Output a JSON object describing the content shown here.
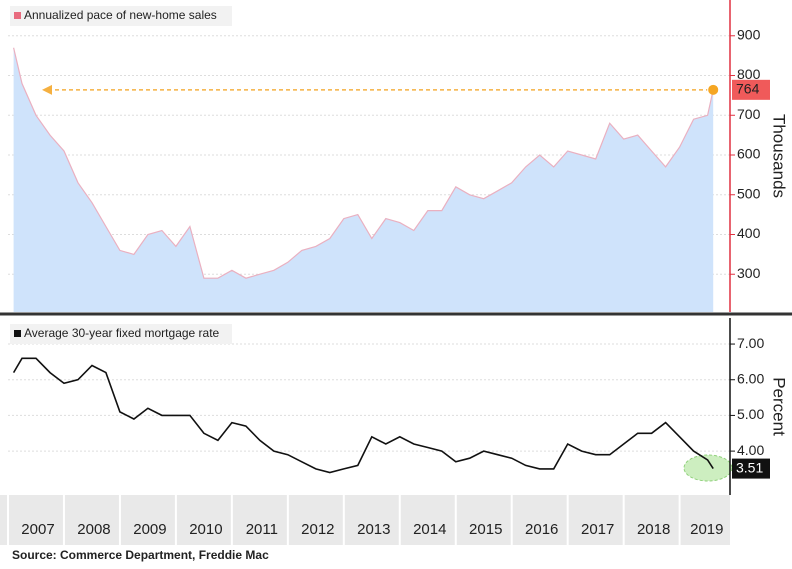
{
  "chart_data": [
    {
      "type": "area",
      "y_axis_label": "Thousands",
      "x": [
        2007.1,
        2007.25,
        2007.5,
        2007.75,
        2008.0,
        2008.25,
        2008.5,
        2008.75,
        2009.0,
        2009.25,
        2009.5,
        2009.75,
        2010.0,
        2010.25,
        2010.5,
        2010.75,
        2011.0,
        2011.25,
        2011.5,
        2011.75,
        2012.0,
        2012.25,
        2012.5,
        2012.75,
        2013.0,
        2013.25,
        2013.5,
        2013.75,
        2014.0,
        2014.25,
        2014.5,
        2014.75,
        2015.0,
        2015.25,
        2015.5,
        2015.75,
        2016.0,
        2016.25,
        2016.5,
        2016.75,
        2017.0,
        2017.25,
        2017.5,
        2017.75,
        2018.0,
        2018.25,
        2018.5,
        2018.75,
        2019.0,
        2019.25,
        2019.5,
        2019.6
      ],
      "series": [
        {
          "name": "Annualized pace of new-home sales",
          "color": "#e86b7e",
          "values": [
            870,
            780,
            700,
            650,
            610,
            530,
            480,
            420,
            360,
            350,
            400,
            410,
            370,
            420,
            290,
            290,
            310,
            290,
            300,
            310,
            330,
            360,
            370,
            390,
            440,
            450,
            390,
            440,
            430,
            410,
            460,
            460,
            520,
            500,
            490,
            510,
            530,
            570,
            600,
            570,
            610,
            600,
            590,
            680,
            640,
            650,
            610,
            570,
            620,
            690,
            700,
            764
          ]
        }
      ],
      "xlim": [
        2007,
        2019.9
      ],
      "ylim": [
        205,
        990
      ],
      "yticks": [
        300,
        400,
        500,
        600,
        700,
        800,
        900
      ],
      "grid": true
    },
    {
      "type": "line",
      "y_axis_label": "Percent",
      "x": [
        2007.1,
        2007.25,
        2007.5,
        2007.75,
        2008.0,
        2008.25,
        2008.5,
        2008.75,
        2009.0,
        2009.25,
        2009.5,
        2009.75,
        2010.0,
        2010.25,
        2010.5,
        2010.75,
        2011.0,
        2011.25,
        2011.5,
        2011.75,
        2012.0,
        2012.25,
        2012.5,
        2012.75,
        2013.0,
        2013.25,
        2013.5,
        2013.75,
        2014.0,
        2014.25,
        2014.5,
        2014.75,
        2015.0,
        2015.25,
        2015.5,
        2015.75,
        2016.0,
        2016.25,
        2016.5,
        2016.75,
        2017.0,
        2017.25,
        2017.5,
        2017.75,
        2018.0,
        2018.25,
        2018.5,
        2018.75,
        2019.0,
        2019.25,
        2019.5,
        2019.6
      ],
      "series": [
        {
          "name": "Average 30-year fixed mortgage rate",
          "color": "#111111",
          "values": [
            6.2,
            6.6,
            6.6,
            6.2,
            5.9,
            6.0,
            6.4,
            6.2,
            5.1,
            4.9,
            5.2,
            5.0,
            5.0,
            5.0,
            4.5,
            4.3,
            4.8,
            4.7,
            4.3,
            4.0,
            3.9,
            3.7,
            3.5,
            3.4,
            3.5,
            3.6,
            4.4,
            4.2,
            4.4,
            4.2,
            4.1,
            4.0,
            3.7,
            3.8,
            4.0,
            3.9,
            3.8,
            3.6,
            3.5,
            3.5,
            4.2,
            4.0,
            3.9,
            3.9,
            4.2,
            4.5,
            4.5,
            4.8,
            4.4,
            4.0,
            3.75,
            3.51
          ]
        }
      ],
      "xlim": [
        2007,
        2019.9
      ],
      "ylim": [
        2.77,
        7.73
      ],
      "yticks": [
        {
          "value": 4,
          "label": "4.00"
        },
        {
          "value": 5,
          "label": "5.00"
        },
        {
          "value": 6,
          "label": "6.00"
        },
        {
          "value": 7,
          "label": "7.00"
        }
      ],
      "xticks": [
        2007,
        2008,
        2009,
        2010,
        2011,
        2012,
        2013,
        2014,
        2015,
        2016,
        2017,
        2018,
        2019
      ],
      "grid": true,
      "source": "Source: Commerce Department, Freddie Mac"
    }
  ]
}
